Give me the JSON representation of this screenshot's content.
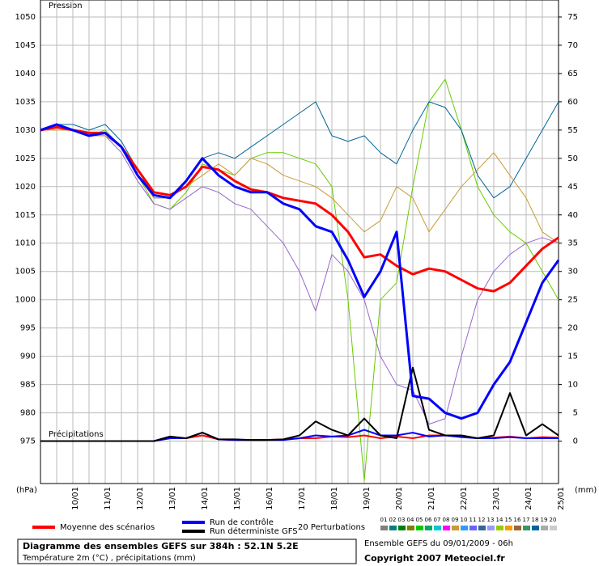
{
  "chart_data": {
    "type": "line",
    "title": "Diagramme des ensembles GEFS sur 384h : 52.1N 5.2E",
    "subtitle": "Température 2m (°C) , précipitations (mm)",
    "run_info": "Ensemble GEFS du 09/01/2009 - 06h",
    "copyright": "Copyright 2007 Meteociel.fr",
    "y_label": "Pression",
    "y2_label": "Précipitations",
    "y_unit": "(hPa)",
    "y2_unit": "(mm)",
    "categories": [
      null,
      null,
      "10/01",
      null,
      "11/01",
      null,
      "12/01",
      null,
      "13/01",
      null,
      "14/01",
      null,
      "15/01",
      null,
      "16/01",
      null,
      "17/01",
      null,
      "18/01",
      null,
      "19/01",
      null,
      "20/01",
      null,
      "21/01",
      null,
      "22/01",
      null,
      "23/01",
      null,
      "24/01",
      null,
      "25/01"
    ],
    "ylim": [
      967.5,
      1053
    ],
    "yticks": [
      975,
      980,
      985,
      990,
      995,
      1000,
      1005,
      1010,
      1015,
      1020,
      1025,
      1030,
      1035,
      1040,
      1045,
      1050
    ],
    "y2lim": [
      -7.5,
      78
    ],
    "y2ticks": [
      0,
      5,
      10,
      15,
      20,
      25,
      30,
      35,
      40,
      45,
      50,
      55,
      60,
      65,
      70,
      75
    ],
    "grid": true,
    "series": [
      {
        "name": "Moyenne des scénarios",
        "color": "#ff0000",
        "values": [
          1030,
          1030.5,
          1030,
          1029.5,
          1029.5,
          1027,
          1023,
          1019,
          1018.5,
          1020,
          1023.5,
          1023,
          1021,
          1019.5,
          1019,
          1018,
          1017.5,
          1017,
          1015,
          1012,
          1007.5,
          1008,
          1006,
          1004.5,
          1005.5,
          1005,
          1003.5,
          1002,
          1001.5,
          1003,
          1006,
          1009,
          1011
        ],
        "precip": [
          0,
          0,
          0,
          0,
          0,
          0,
          0,
          0,
          0.5,
          0.5,
          1,
          0.3,
          0.2,
          0.2,
          0.2,
          0.3,
          0.5,
          0.5,
          0.8,
          0.7,
          1,
          0.5,
          0.8,
          0.5,
          1,
          1,
          0.8,
          0.5,
          0.6,
          0.8,
          0.5,
          0.7,
          0.6
        ]
      },
      {
        "name": "Run de contrôle",
        "color": "#0000ff",
        "values": [
          1030,
          1031,
          1030,
          1029,
          1029.5,
          1027,
          1022,
          1018.5,
          1018,
          1021,
          1025,
          1022,
          1020,
          1019,
          1019,
          1017,
          1016,
          1013,
          1012,
          1007,
          1000.5,
          1005,
          1012,
          983,
          982.5,
          980,
          979,
          980,
          985,
          989,
          996,
          1003,
          1007
        ],
        "precip": [
          0,
          0,
          0,
          0,
          0,
          0,
          0,
          0,
          0.5,
          0.5,
          1.5,
          0.3,
          0.2,
          0.2,
          0.2,
          0.2,
          0.5,
          1,
          0.8,
          1,
          2,
          1,
          1,
          1.5,
          0.8,
          1,
          0.7,
          0.5,
          0.5,
          0.7,
          0.5,
          0.5,
          0.5
        ]
      },
      {
        "name": "Run déterministe GFS",
        "color": "#000000",
        "precip": [
          0,
          0,
          0,
          0,
          0,
          0,
          0,
          0,
          0.8,
          0.5,
          1.5,
          0.3,
          0.3,
          0.2,
          0.2,
          0.3,
          1,
          3.5,
          2,
          1,
          4,
          1,
          0.5,
          13,
          2,
          1,
          1,
          0.5,
          1,
          8.5,
          1,
          3,
          1
        ]
      }
    ],
    "perturbations": {
      "label": "20 Perturbations",
      "series": [
        {
          "color": "#66cc00",
          "values": [
            1030,
            1031,
            1030,
            1029,
            1030,
            1027,
            1022,
            1017,
            1016,
            1019,
            1024,
            1023,
            1022,
            1025,
            1026,
            1026,
            1025,
            1024,
            1020,
            1000,
            968,
            1000,
            1003,
            1020,
            1035,
            1039,
            1030,
            1020,
            1015,
            1012,
            1010,
            1005,
            1000
          ]
        },
        {
          "color": "#006699",
          "values": [
            1030,
            1031,
            1031,
            1030,
            1031,
            1028,
            1023,
            1018,
            1018,
            1021,
            1025,
            1026,
            1025,
            1027,
            1029,
            1031,
            1033,
            1035,
            1029,
            1028,
            1029,
            1026,
            1024,
            1030,
            1035,
            1034,
            1030,
            1022,
            1018,
            1020,
            1025,
            1030,
            1035
          ]
        },
        {
          "color": "#9966cc",
          "values": [
            1030,
            1031,
            1030,
            1029,
            1029,
            1026,
            1021,
            1017,
            1016,
            1018,
            1020,
            1019,
            1017,
            1016,
            1013,
            1010,
            1005,
            998,
            1008,
            1005,
            1000,
            990,
            985,
            984,
            978,
            979,
            990,
            1000,
            1005,
            1008,
            1010,
            1011,
            1010
          ]
        },
        {
          "color": "#cc9933",
          "values": [
            1030,
            1030,
            1030,
            1029,
            1029,
            1027,
            1022,
            1018,
            1018,
            1020,
            1022,
            1024,
            1022,
            1025,
            1024,
            1022,
            1021,
            1020,
            1018,
            1015,
            1012,
            1014,
            1020,
            1018,
            1012,
            1016,
            1020,
            1023,
            1026,
            1022,
            1018,
            1012,
            1010
          ]
        }
      ],
      "legend": [
        {
          "label": "01",
          "color": "#808080"
        },
        {
          "label": "02",
          "color": "#008080"
        },
        {
          "label": "03",
          "color": "#008000"
        },
        {
          "label": "04",
          "color": "#808000"
        },
        {
          "label": "05",
          "color": "#00cc00"
        },
        {
          "label": "06",
          "color": "#00aa66"
        },
        {
          "label": "07",
          "color": "#00cccc"
        },
        {
          "label": "08",
          "color": "#ff00ff"
        },
        {
          "label": "09",
          "color": "#cc9933"
        },
        {
          "label": "10",
          "color": "#3399ff"
        },
        {
          "label": "11",
          "color": "#6666ff"
        },
        {
          "label": "12",
          "color": "#336699"
        },
        {
          "label": "13",
          "color": "#9999ff"
        },
        {
          "label": "14",
          "color": "#99cc00"
        },
        {
          "label": "15",
          "color": "#ff9900"
        },
        {
          "label": "16",
          "color": "#996633"
        },
        {
          "label": "17",
          "color": "#339966"
        },
        {
          "label": "18",
          "color": "#006699"
        },
        {
          "label": "19",
          "color": "#aaaaaa"
        },
        {
          "label": "20",
          "color": "#cccccc"
        }
      ]
    }
  }
}
